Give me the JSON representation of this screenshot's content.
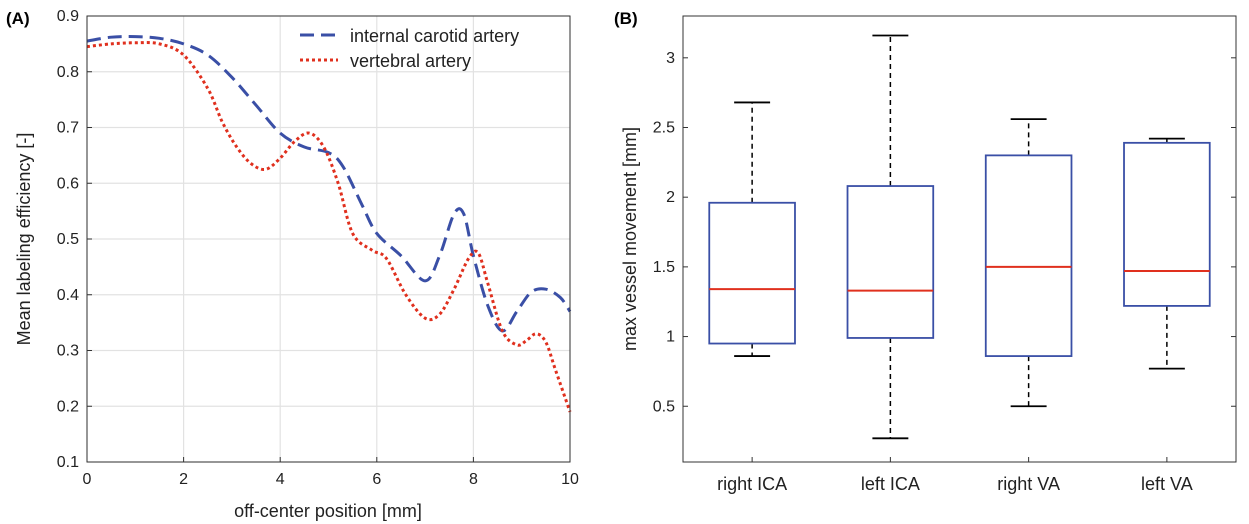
{
  "colors": {
    "ica": "#3a4fa6",
    "va": "#e0301e",
    "box": "#3a4fa6",
    "median": "#e0301e",
    "whisker": "#000000",
    "grid": "#e2e2e2"
  },
  "chart_data": [
    {
      "panel_label": "(A)",
      "type": "line",
      "xlabel": "off-center position [mm]",
      "ylabel": "Mean labeling efficiency [-]",
      "xlim": [
        0,
        10
      ],
      "ylim": [
        0.1,
        0.9
      ],
      "xticks": [
        "0",
        "2",
        "4",
        "6",
        "8",
        "10"
      ],
      "yticks": [
        "0.1",
        "0.2",
        "0.3",
        "0.4",
        "0.5",
        "0.6",
        "0.7",
        "0.8",
        "0.9"
      ],
      "grid": true,
      "legend_position": "top-right",
      "series": [
        {
          "name": "internal carotid artery",
          "style": "dashed",
          "color": "#3a4fa6",
          "x": [
            0,
            0.5,
            1,
            1.5,
            2,
            2.5,
            3,
            3.5,
            4,
            4.5,
            5,
            5.3,
            5.7,
            6,
            6.5,
            7,
            7.3,
            7.6,
            7.8,
            8,
            8.3,
            8.6,
            8.9,
            9.2,
            9.5,
            9.8,
            10
          ],
          "y": [
            0.855,
            0.862,
            0.863,
            0.86,
            0.85,
            0.83,
            0.79,
            0.74,
            0.69,
            0.665,
            0.655,
            0.63,
            0.56,
            0.51,
            0.47,
            0.425,
            0.47,
            0.545,
            0.545,
            0.47,
            0.38,
            0.335,
            0.37,
            0.405,
            0.41,
            0.395,
            0.37
          ]
        },
        {
          "name": "vertebral artery",
          "style": "dotted",
          "color": "#e0301e",
          "x": [
            0,
            0.5,
            1,
            1.5,
            2,
            2.5,
            2.8,
            3.1,
            3.4,
            3.7,
            4.0,
            4.3,
            4.6,
            4.9,
            5.2,
            5.5,
            5.9,
            6.2,
            6.6,
            7.0,
            7.3,
            7.6,
            7.9,
            8.1,
            8.3,
            8.6,
            8.9,
            9.1,
            9.3,
            9.5,
            9.7,
            10
          ],
          "y": [
            0.845,
            0.85,
            0.852,
            0.85,
            0.83,
            0.77,
            0.71,
            0.665,
            0.635,
            0.625,
            0.645,
            0.675,
            0.69,
            0.665,
            0.6,
            0.51,
            0.48,
            0.465,
            0.4,
            0.358,
            0.365,
            0.41,
            0.465,
            0.475,
            0.42,
            0.335,
            0.31,
            0.318,
            0.33,
            0.315,
            0.265,
            0.19
          ]
        }
      ]
    },
    {
      "panel_label": "(B)",
      "type": "box",
      "ylabel": "max vessel movement [mm]",
      "ylim": [
        0.1,
        3.3
      ],
      "yticks": [
        "0.5",
        "1",
        "1.5",
        "2",
        "2.5",
        "3"
      ],
      "categories": [
        "right ICA",
        "left ICA",
        "right VA",
        "left VA"
      ],
      "boxes": [
        {
          "whisker_low": 0.86,
          "q1": 0.95,
          "median": 1.34,
          "q3": 1.96,
          "whisker_high": 2.68
        },
        {
          "whisker_low": 0.27,
          "q1": 0.99,
          "median": 1.33,
          "q3": 2.08,
          "whisker_high": 3.16
        },
        {
          "whisker_low": 0.5,
          "q1": 0.86,
          "median": 1.5,
          "q3": 2.3,
          "whisker_high": 2.56
        },
        {
          "whisker_low": 0.77,
          "q1": 1.22,
          "median": 1.47,
          "q3": 2.39,
          "whisker_high": 2.42
        }
      ]
    }
  ]
}
